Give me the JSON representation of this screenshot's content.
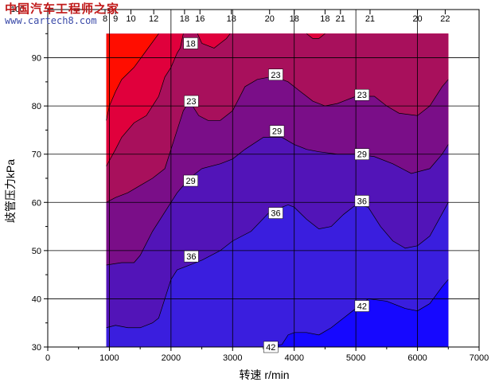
{
  "watermark": {
    "chinese": "中国汽车工程师之家",
    "url": "www.cartech8.com"
  },
  "chart_data": {
    "type": "contour",
    "xlabel": "转速 r/min",
    "ylabel": "歧管压力kPa",
    "xlim": [
      0,
      7000
    ],
    "ylim": [
      30,
      100
    ],
    "xticks": [
      0,
      1000,
      2000,
      3000,
      4000,
      5000,
      6000,
      7000
    ],
    "yticks": [
      30,
      40,
      50,
      60,
      70,
      80,
      90
    ],
    "ytick_top_label": "100",
    "grid": true,
    "data_x_range": [
      950,
      6500
    ],
    "data_y_range": [
      30,
      95
    ],
    "top_labels": [
      {
        "x": 930,
        "label": "8"
      },
      {
        "x": 1100,
        "label": "9"
      },
      {
        "x": 1350,
        "label": "10"
      },
      {
        "x": 1720,
        "label": "12"
      },
      {
        "x": 2220,
        "label": "18"
      },
      {
        "x": 2470,
        "label": "16"
      },
      {
        "x": 2980,
        "label": "18"
      },
      {
        "x": 3600,
        "label": "20"
      },
      {
        "x": 4000,
        "label": "18"
      },
      {
        "x": 4500,
        "label": "18"
      },
      {
        "x": 4750,
        "label": "21"
      },
      {
        "x": 5230,
        "label": "21"
      },
      {
        "x": 6000,
        "label": "20"
      },
      {
        "x": 6450,
        "label": "22"
      }
    ],
    "contour_levels": [
      {
        "level": "14",
        "boundary": [
          [
            950,
            77
          ],
          [
            1000,
            80
          ],
          [
            1100,
            83
          ],
          [
            1200,
            85.5
          ],
          [
            1400,
            88
          ],
          [
            1600,
            91.5
          ],
          [
            1800,
            95
          ]
        ]
      },
      {
        "level": "18",
        "boundary": [
          [
            950,
            67.5
          ],
          [
            1100,
            71
          ],
          [
            1200,
            73.5
          ],
          [
            1400,
            76.5
          ],
          [
            1600,
            78
          ],
          [
            1800,
            82
          ],
          [
            1900,
            86
          ],
          [
            2000,
            88
          ],
          [
            2100,
            91
          ],
          [
            2150,
            92
          ],
          [
            2200,
            95
          ]
        ]
      },
      {
        "level": "18 ",
        "boundary": [
          [
            2430,
            95
          ],
          [
            2500,
            93
          ],
          [
            2700,
            92
          ],
          [
            2800,
            93
          ],
          [
            2900,
            94
          ],
          [
            2960,
            95
          ]
        ]
      },
      {
        "level": "18  ",
        "boundary": [
          [
            4200,
            95
          ],
          [
            4300,
            94
          ],
          [
            4400,
            94
          ],
          [
            4500,
            95
          ]
        ]
      },
      {
        "level": "23",
        "boundary": [
          [
            950,
            60
          ],
          [
            1100,
            61
          ],
          [
            1300,
            62
          ],
          [
            1500,
            63.5
          ],
          [
            1700,
            65
          ],
          [
            1900,
            67
          ],
          [
            2000,
            71
          ],
          [
            2100,
            75
          ],
          [
            2200,
            79
          ],
          [
            2300,
            81
          ],
          [
            2450,
            78
          ],
          [
            2600,
            77
          ],
          [
            2800,
            77
          ],
          [
            3000,
            79
          ],
          [
            3200,
            84
          ],
          [
            3400,
            85.5
          ],
          [
            3600,
            86
          ],
          [
            3800,
            85.5
          ],
          [
            3900,
            85
          ],
          [
            4100,
            83
          ],
          [
            4300,
            81
          ],
          [
            4500,
            80
          ],
          [
            4700,
            80.5
          ],
          [
            5000,
            82
          ],
          [
            5300,
            82
          ],
          [
            5500,
            80
          ],
          [
            5700,
            78.5
          ],
          [
            6000,
            78
          ],
          [
            6200,
            80
          ],
          [
            6400,
            84
          ],
          [
            6500,
            85.5
          ]
        ]
      },
      {
        "level": "29",
        "boundary": [
          [
            950,
            47
          ],
          [
            1200,
            47.5
          ],
          [
            1400,
            47.5
          ],
          [
            1500,
            49
          ],
          [
            1700,
            54
          ],
          [
            1900,
            58
          ],
          [
            2000,
            60
          ],
          [
            2100,
            62
          ],
          [
            2300,
            65
          ],
          [
            2500,
            67
          ],
          [
            2800,
            68
          ],
          [
            3000,
            69
          ],
          [
            3200,
            71
          ],
          [
            3500,
            73.5
          ],
          [
            3800,
            73.5
          ],
          [
            4000,
            72
          ],
          [
            4200,
            71
          ],
          [
            4400,
            70.5
          ],
          [
            4700,
            70
          ],
          [
            5000,
            70
          ],
          [
            5300,
            69.5
          ],
          [
            5600,
            68
          ],
          [
            5900,
            66
          ],
          [
            6200,
            67
          ],
          [
            6400,
            70
          ],
          [
            6500,
            72
          ]
        ]
      },
      {
        "level": "36",
        "boundary": [
          [
            950,
            34
          ],
          [
            1100,
            34.5
          ],
          [
            1300,
            34
          ],
          [
            1500,
            34
          ],
          [
            1700,
            35
          ],
          [
            1800,
            36
          ],
          [
            1900,
            40
          ],
          [
            2000,
            44
          ],
          [
            2100,
            46
          ],
          [
            2300,
            47
          ],
          [
            2500,
            48
          ],
          [
            2800,
            50
          ],
          [
            3000,
            52
          ],
          [
            3300,
            54
          ],
          [
            3600,
            58
          ],
          [
            3900,
            59.5
          ],
          [
            4000,
            59
          ],
          [
            4200,
            56.5
          ],
          [
            4400,
            54.5
          ],
          [
            4600,
            55
          ],
          [
            4800,
            57.5
          ],
          [
            5000,
            59.5
          ],
          [
            5200,
            59
          ],
          [
            5400,
            55
          ],
          [
            5600,
            52
          ],
          [
            5800,
            50.5
          ],
          [
            6000,
            51
          ],
          [
            6200,
            53
          ],
          [
            6500,
            60
          ]
        ]
      },
      {
        "level": "42",
        "boundary": [
          [
            3500,
            30
          ],
          [
            3800,
            30.5
          ],
          [
            3900,
            32.5
          ],
          [
            4000,
            33
          ],
          [
            4200,
            33
          ],
          [
            4400,
            32.5
          ],
          [
            4600,
            34
          ],
          [
            4800,
            36
          ],
          [
            5000,
            38
          ],
          [
            5200,
            40
          ],
          [
            5500,
            39.5
          ],
          [
            5800,
            38
          ],
          [
            6000,
            37.5
          ],
          [
            6200,
            39
          ],
          [
            6400,
            42.5
          ],
          [
            6500,
            44
          ]
        ]
      }
    ],
    "band_colors": [
      "#ff0d00",
      "#e0003c",
      "#a8105c",
      "#7a0e88",
      "#5214b8",
      "#3a1ede",
      "#2a1cf0",
      "#1608ff"
    ],
    "contour_labels": [
      {
        "x": 2320,
        "y": 93,
        "label": "18"
      },
      {
        "x": 2330,
        "y": 81,
        "label": "23"
      },
      {
        "x": 3700,
        "y": 86.5,
        "label": "23"
      },
      {
        "x": 5100,
        "y": 82.3,
        "label": "23"
      },
      {
        "x": 2320,
        "y": 64.5,
        "label": "29"
      },
      {
        "x": 3720,
        "y": 74.8,
        "label": "29"
      },
      {
        "x": 5100,
        "y": 70,
        "label": "29"
      },
      {
        "x": 2330,
        "y": 48.8,
        "label": "36"
      },
      {
        "x": 3700,
        "y": 57.8,
        "label": "36"
      },
      {
        "x": 5100,
        "y": 60.3,
        "label": "36"
      },
      {
        "x": 3620,
        "y": 30,
        "label": "42"
      },
      {
        "x": 5100,
        "y": 38.5,
        "label": "42"
      }
    ]
  }
}
